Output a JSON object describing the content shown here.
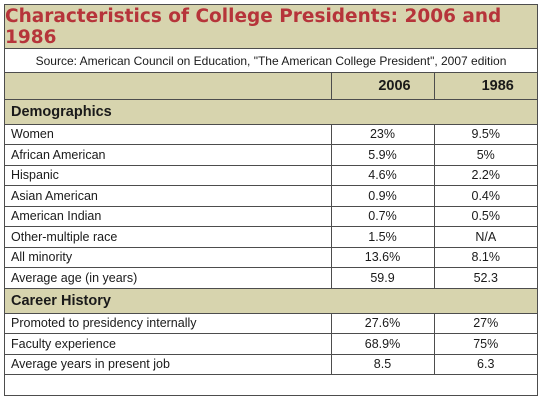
{
  "title": "Characteristics of College Presidents: 2006 and 1986",
  "source": "Source: American Council on Education, \"The American College President\", 2007 edition",
  "columns": [
    "2006",
    "1986"
  ],
  "sections": [
    {
      "heading": "Demographics",
      "rows": [
        {
          "label": "Women",
          "v2006": "23%",
          "v1986": "9.5%"
        },
        {
          "label": "African American",
          "v2006": "5.9%",
          "v1986": "5%"
        },
        {
          "label": "Hispanic",
          "v2006": "4.6%",
          "v1986": "2.2%"
        },
        {
          "label": "Asian American",
          "v2006": "0.9%",
          "v1986": "0.4%"
        },
        {
          "label": "American Indian",
          "v2006": "0.7%",
          "v1986": "0.5%"
        },
        {
          "label": "Other-multiple race",
          "v2006": "1.5%",
          "v1986": "N/A"
        },
        {
          "label": "All minority",
          "v2006": "13.6%",
          "v1986": "8.1%"
        },
        {
          "label": "Average age (in years)",
          "v2006": "59.9",
          "v1986": "52.3"
        }
      ]
    },
    {
      "heading": "Career History",
      "rows": [
        {
          "label": "Promoted to presidency internally",
          "v2006": "27.6%",
          "v1986": "27%"
        },
        {
          "label": "Faculty experience",
          "v2006": "68.9%",
          "v1986": "75%"
        },
        {
          "label": "Average years in present job",
          "v2006": "8.5",
          "v1986": "6.3"
        }
      ]
    }
  ],
  "colors": {
    "band": "#d7d4ae",
    "title": "#b6343a",
    "border": "#4d4d4d"
  }
}
